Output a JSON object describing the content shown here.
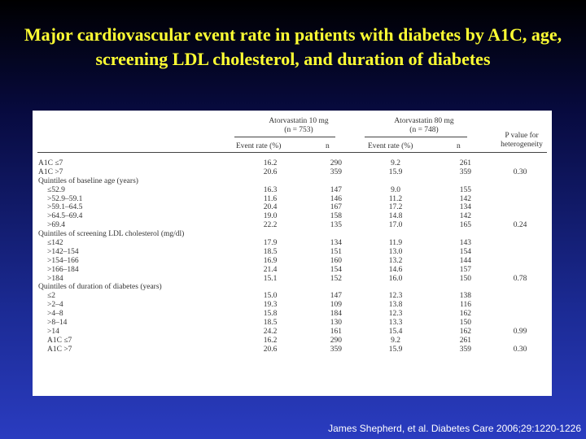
{
  "title": "Major cardiovascular event rate in patients with diabetes by A1C, age, screening LDL cholesterol, and duration of diabetes",
  "citation": "James Shepherd, et al. Diabetes Care 2006;29:1220-1226",
  "table": {
    "group1": {
      "name": "Atorvastatin 10 mg",
      "n": "(n = 753)"
    },
    "group2": {
      "name": "Atorvastatin 80 mg",
      "n": "(n = 748)"
    },
    "p_header": "P value for heterogeneity",
    "sub_event_rate": "Event rate (%)",
    "sub_n": "n",
    "rows": [
      {
        "label": "A1C ≤7",
        "indent": false,
        "er10": "16.2",
        "n10": "290",
        "er80": "9.2",
        "n80": "261",
        "p": ""
      },
      {
        "label": "A1C >7",
        "indent": false,
        "er10": "20.6",
        "n10": "359",
        "er80": "15.9",
        "n80": "359",
        "p": "0.30"
      },
      {
        "label": "Quintiles of baseline age (years)",
        "indent": false,
        "er10": "",
        "n10": "",
        "er80": "",
        "n80": "",
        "p": ""
      },
      {
        "label": "≤52.9",
        "indent": true,
        "er10": "16.3",
        "n10": "147",
        "er80": "9.0",
        "n80": "155",
        "p": ""
      },
      {
        "label": ">52.9–59.1",
        "indent": true,
        "er10": "11.6",
        "n10": "146",
        "er80": "11.2",
        "n80": "142",
        "p": ""
      },
      {
        "label": ">59.1–64.5",
        "indent": true,
        "er10": "20.4",
        "n10": "167",
        "er80": "17.2",
        "n80": "134",
        "p": ""
      },
      {
        "label": ">64.5–69.4",
        "indent": true,
        "er10": "19.0",
        "n10": "158",
        "er80": "14.8",
        "n80": "142",
        "p": ""
      },
      {
        "label": ">69.4",
        "indent": true,
        "er10": "22.2",
        "n10": "135",
        "er80": "17.0",
        "n80": "165",
        "p": "0.24"
      },
      {
        "label": "Quintiles of screening LDL cholesterol (mg/dl)",
        "indent": false,
        "er10": "",
        "n10": "",
        "er80": "",
        "n80": "",
        "p": ""
      },
      {
        "label": "≤142",
        "indent": true,
        "er10": "17.9",
        "n10": "134",
        "er80": "11.9",
        "n80": "143",
        "p": ""
      },
      {
        "label": ">142–154",
        "indent": true,
        "er10": "18.5",
        "n10": "151",
        "er80": "13.0",
        "n80": "154",
        "p": ""
      },
      {
        "label": ">154–166",
        "indent": true,
        "er10": "16.9",
        "n10": "160",
        "er80": "13.2",
        "n80": "144",
        "p": ""
      },
      {
        "label": ">166–184",
        "indent": true,
        "er10": "21.4",
        "n10": "154",
        "er80": "14.6",
        "n80": "157",
        "p": ""
      },
      {
        "label": ">184",
        "indent": true,
        "er10": "15.1",
        "n10": "152",
        "er80": "16.0",
        "n80": "150",
        "p": "0.78"
      },
      {
        "label": "Quintiles of duration of diabetes (years)",
        "indent": false,
        "er10": "",
        "n10": "",
        "er80": "",
        "n80": "",
        "p": ""
      },
      {
        "label": "≤2",
        "indent": true,
        "er10": "15.0",
        "n10": "147",
        "er80": "12.3",
        "n80": "138",
        "p": ""
      },
      {
        "label": ">2–4",
        "indent": true,
        "er10": "19.3",
        "n10": "109",
        "er80": "13.8",
        "n80": "116",
        "p": ""
      },
      {
        "label": ">4–8",
        "indent": true,
        "er10": "15.8",
        "n10": "184",
        "er80": "12.3",
        "n80": "162",
        "p": ""
      },
      {
        "label": ">8–14",
        "indent": true,
        "er10": "18.5",
        "n10": "130",
        "er80": "13.3",
        "n80": "150",
        "p": ""
      },
      {
        "label": ">14",
        "indent": true,
        "er10": "24.2",
        "n10": "161",
        "er80": "15.4",
        "n80": "162",
        "p": "0.99"
      },
      {
        "label": "A1C ≤7",
        "indent": true,
        "er10": "16.2",
        "n10": "290",
        "er80": "9.2",
        "n80": "261",
        "p": ""
      },
      {
        "label": "A1C >7",
        "indent": true,
        "er10": "20.6",
        "n10": "359",
        "er80": "15.9",
        "n80": "359",
        "p": "0.30"
      }
    ]
  }
}
